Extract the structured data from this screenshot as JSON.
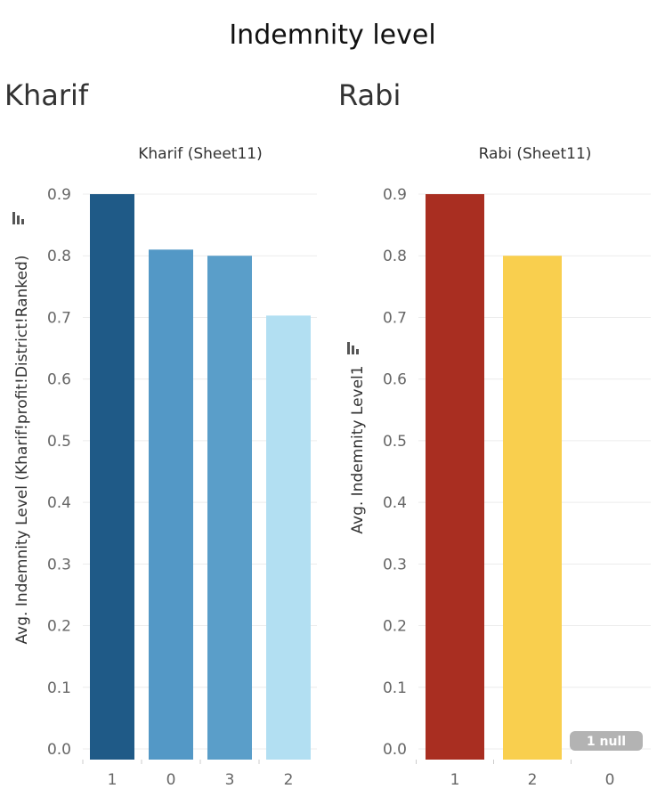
{
  "dashboard": {
    "title": "Indemnity level",
    "left_section_title": "Kharif",
    "right_section_title": "Rabi"
  },
  "chart_data": [
    {
      "type": "bar",
      "title": "Kharif (Sheet11)",
      "ylabel": "Avg. Indemnity Level (Kharif!profit!District!Ranked)",
      "xlabel": "",
      "categories": [
        "1",
        "0",
        "3",
        "2"
      ],
      "values": [
        0.9,
        0.81,
        0.8,
        0.703
      ],
      "colors": [
        "#1f5a87",
        "#5398c6",
        "#5a9ec9",
        "#b2dff2"
      ],
      "ylim": [
        0,
        0.9
      ],
      "yticks": [
        "0.0",
        "0.1",
        "0.2",
        "0.3",
        "0.4",
        "0.5",
        "0.6",
        "0.7",
        "0.8",
        "0.9"
      ],
      "grid": true,
      "sort_icon": "sort-descending-icon"
    },
    {
      "type": "bar",
      "title": "Rabi (Sheet11)",
      "ylabel": "Avg. Indemnity Level1",
      "xlabel": "",
      "categories": [
        "1",
        "2",
        "0"
      ],
      "values": [
        0.9,
        0.8,
        null
      ],
      "colors": [
        "#a92e21",
        "#f9cf4e",
        "#cccccc"
      ],
      "ylim": [
        0,
        0.9
      ],
      "yticks": [
        "0.0",
        "0.1",
        "0.2",
        "0.3",
        "0.4",
        "0.5",
        "0.6",
        "0.7",
        "0.8",
        "0.9"
      ],
      "grid": true,
      "null_indicator": "1 null",
      "sort_icon": "sort-descending-icon"
    }
  ]
}
